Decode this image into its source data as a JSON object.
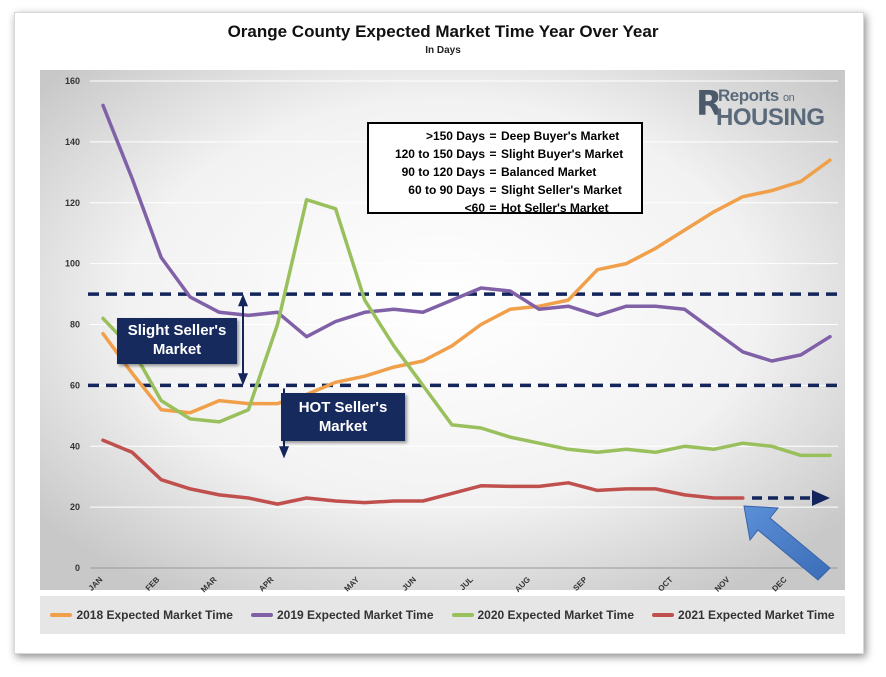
{
  "chart_data": {
    "type": "line",
    "title": "Orange County Expected Market Time Year Over Year",
    "subtitle": "In Days",
    "xlabel": "",
    "ylabel": "",
    "ylim": [
      0,
      160
    ],
    "yticks": [
      0,
      20,
      40,
      60,
      80,
      100,
      120,
      140,
      160
    ],
    "month_labels": [
      {
        "label": "JAN",
        "week": 0
      },
      {
        "label": "FEB",
        "week": 4
      },
      {
        "label": "MAR",
        "week": 8
      },
      {
        "label": "APR",
        "week": 12
      },
      {
        "label": "MAY",
        "week": 18
      },
      {
        "label": "JUN",
        "week": 22
      },
      {
        "label": "JUL",
        "week": 26
      },
      {
        "label": "AUG",
        "week": 30
      },
      {
        "label": "SEP",
        "week": 34
      },
      {
        "label": "OCT",
        "week": 40
      },
      {
        "label": "NOV",
        "week": 44
      },
      {
        "label": "DEC",
        "week": 48
      }
    ],
    "x_max_week": 51,
    "series": [
      {
        "name": "2018 Expected Market Time",
        "color": "#f0a04b",
        "values": [
          77,
          64,
          52,
          51,
          55,
          54,
          54,
          57,
          61,
          63,
          66,
          68,
          73,
          80,
          85,
          86,
          88,
          98,
          100,
          105,
          111,
          117,
          122,
          124,
          127,
          134
        ]
      },
      {
        "name": "2019 Expected Market Time",
        "color": "#8061a8",
        "values": [
          152,
          128,
          102,
          89,
          84,
          83,
          84,
          76,
          81,
          84,
          85,
          84,
          88,
          92,
          91,
          85,
          86,
          83,
          86,
          86,
          85,
          78,
          71,
          68,
          70,
          76
        ]
      },
      {
        "name": "2020 Expected Market Time",
        "color": "#99c05c",
        "values": [
          82,
          72,
          55,
          49,
          48,
          52,
          80,
          121,
          118,
          88,
          73,
          60,
          47,
          46,
          43,
          41,
          39,
          38,
          39,
          38,
          40,
          39,
          41,
          40,
          37,
          37
        ]
      },
      {
        "name": "2021 Expected Market Time",
        "color": "#c0504d",
        "values": [
          42,
          38,
          29,
          26,
          24,
          23,
          21,
          23,
          22,
          21.5,
          22,
          22,
          24.5,
          27,
          26.8,
          26.8,
          28,
          25.5,
          26,
          26,
          24,
          23,
          23
        ]
      }
    ],
    "threshold_lines": [
      90,
      60
    ],
    "annotations": {
      "legend_key": [
        {
          "range": ">150 Days",
          "eq": "=",
          "desc": "Deep Buyer's Market"
        },
        {
          "range": "120 to 150 Days",
          "eq": "=",
          "desc": "Slight Buyer's Market"
        },
        {
          "range": "90 to 120 Days",
          "eq": "=",
          "desc": "Balanced Market"
        },
        {
          "range": "60 to 90 Days",
          "eq": "=",
          "desc": "Slight Seller's Market"
        },
        {
          "range": "<60",
          "eq": "=",
          "desc": "Hot Seller's Market"
        }
      ],
      "slight_seller_line1": "Slight Seller's",
      "slight_seller_line2": "Market",
      "hot_seller_line1": "HOT Seller's",
      "hot_seller_line2": "Market"
    },
    "legend_position": "bottom"
  },
  "logo": {
    "reports": "Reports",
    "on": "on",
    "housing": "HOUSING"
  }
}
